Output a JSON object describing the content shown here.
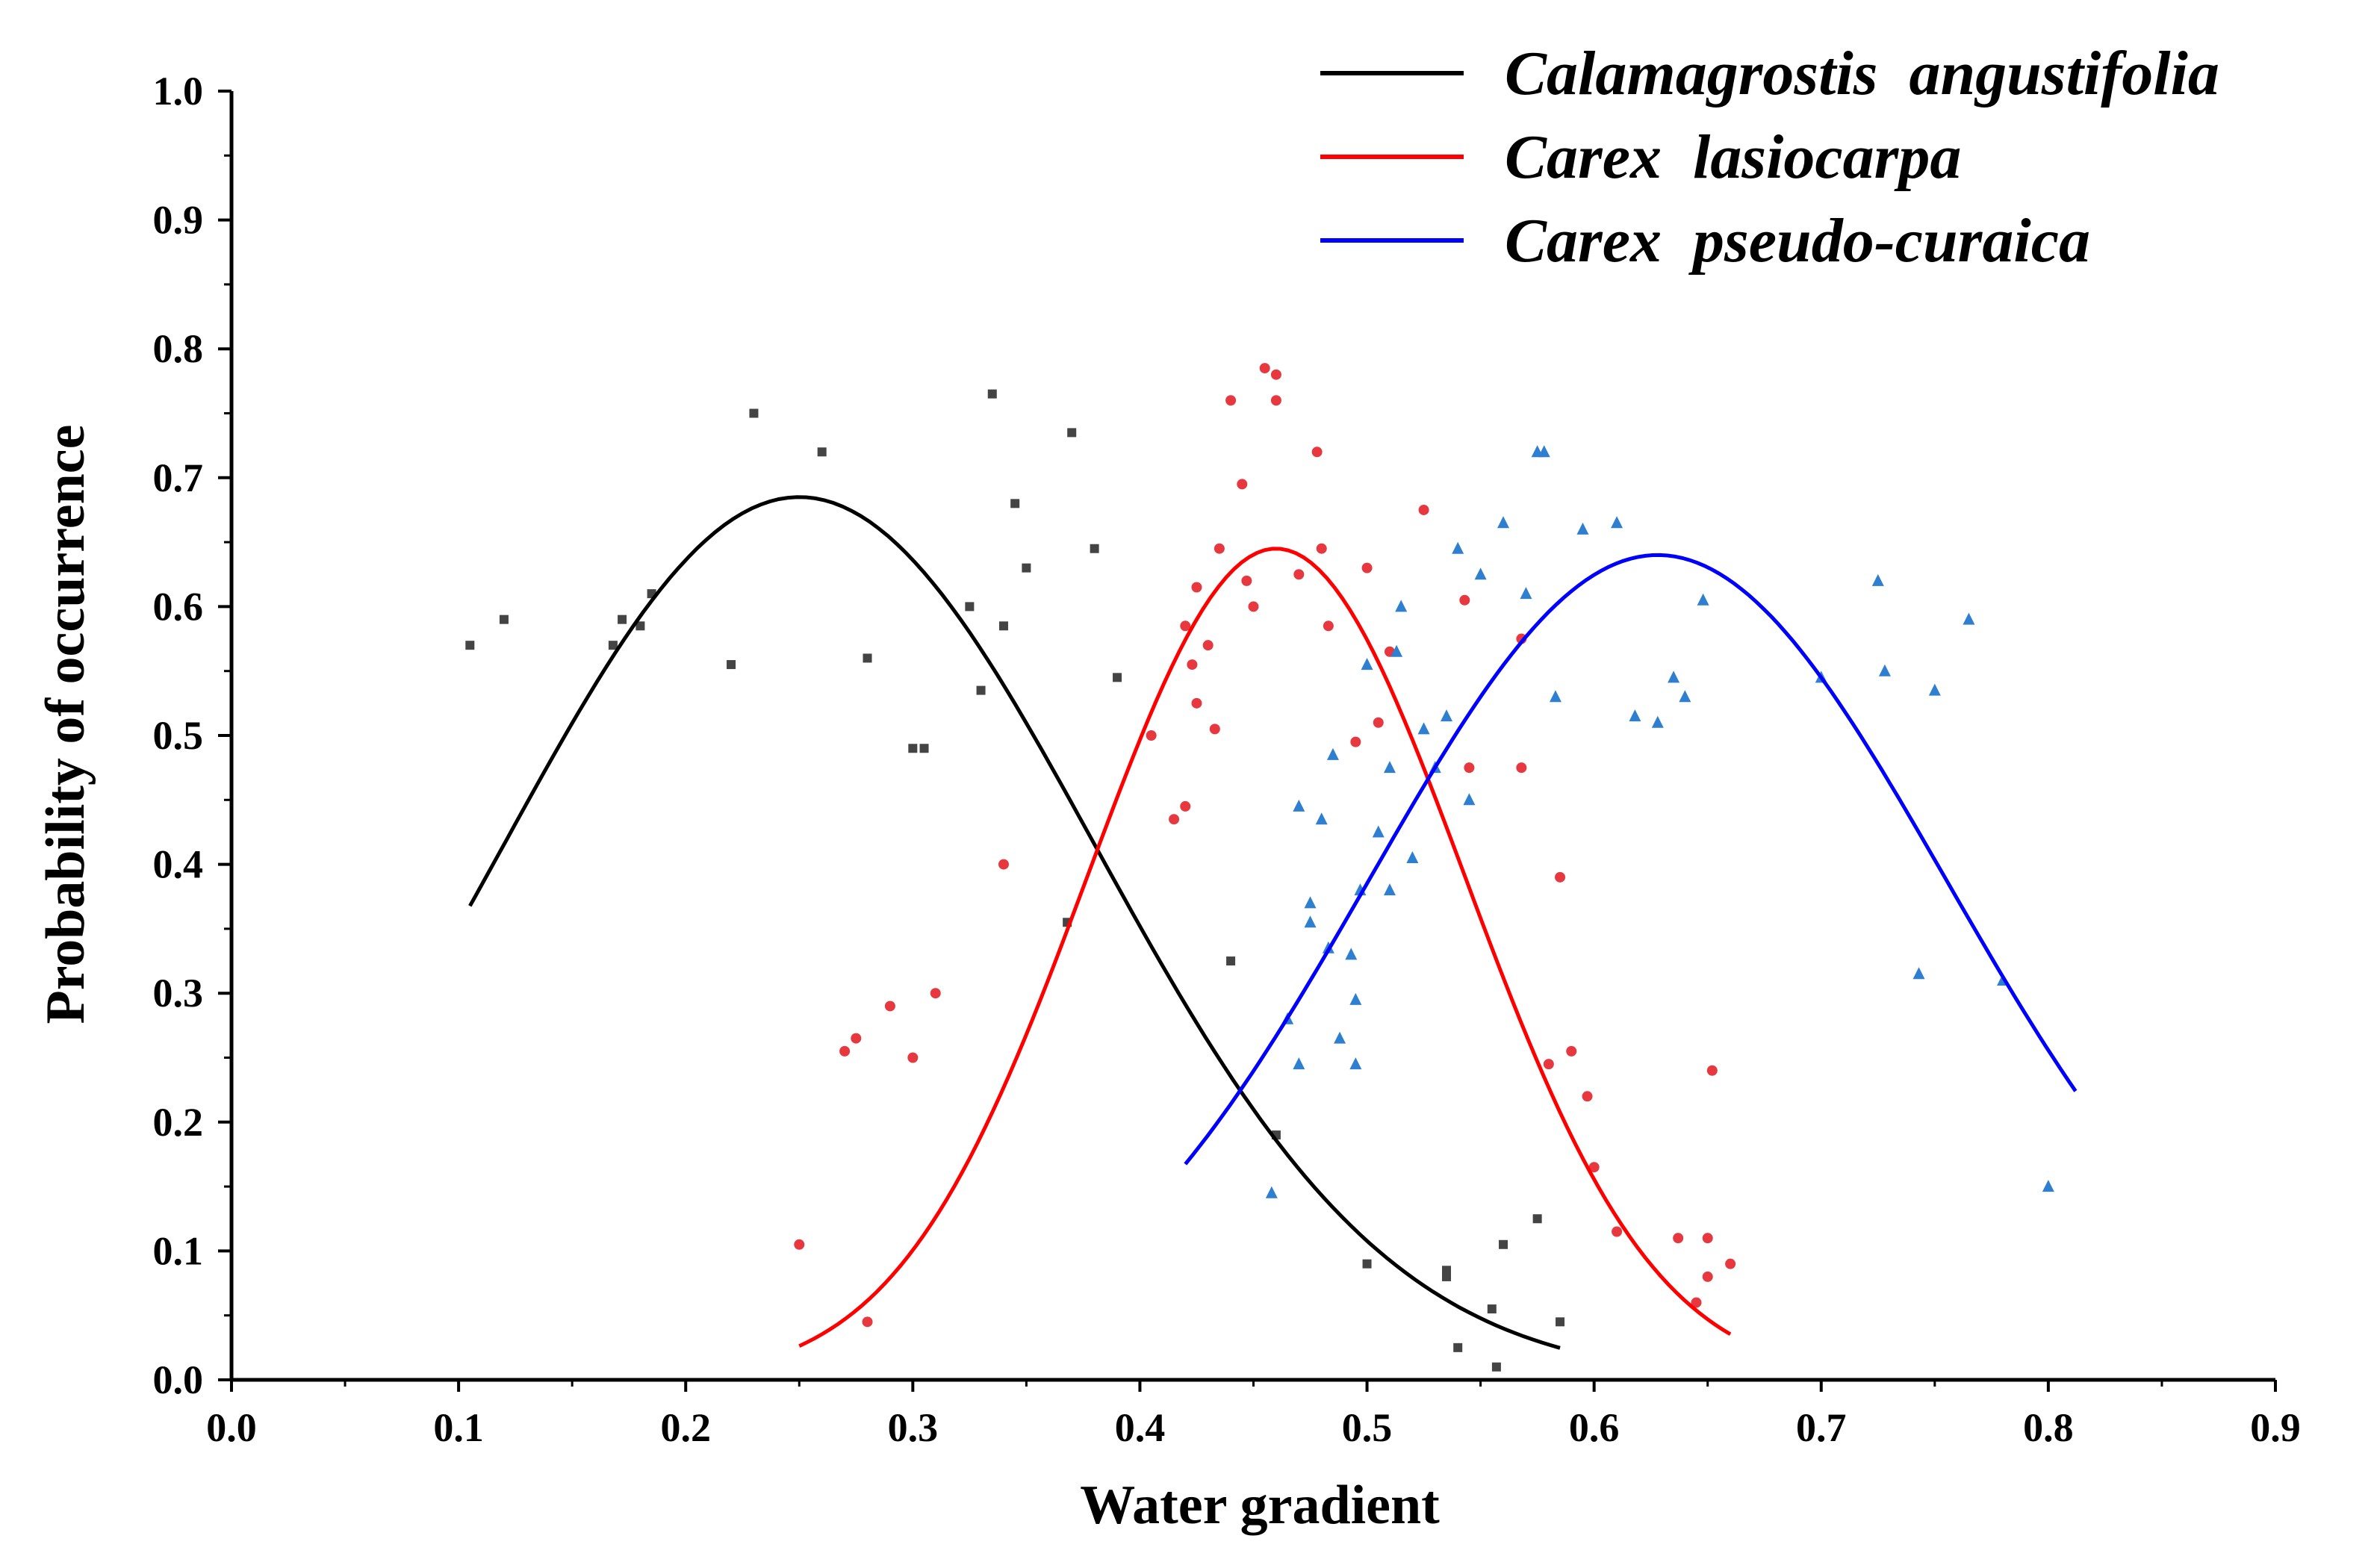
{
  "chart_data": {
    "type": "scatter",
    "title": "",
    "xlabel": "Water gradient",
    "ylabel": "Probability of occurrence",
    "xlim": [
      0.0,
      0.9
    ],
    "ylim": [
      0.0,
      1.0
    ],
    "xticks": [
      "0.0",
      "0.1",
      "0.2",
      "0.3",
      "0.4",
      "0.5",
      "0.6",
      "0.7",
      "0.8",
      "0.9"
    ],
    "yticks": [
      "0.0",
      "0.1",
      "0.2",
      "0.3",
      "0.4",
      "0.5",
      "0.6",
      "0.7",
      "0.8",
      "0.9",
      "1.0"
    ],
    "grid": false,
    "legend_position": "top-right",
    "series": [
      {
        "name": "Calamagrostis  angustifolia",
        "color": "#000000",
        "marker_color": "#444444",
        "marker": "square",
        "curve": {
          "x_start": 0.105,
          "x_end": 0.585,
          "peak_x": 0.25,
          "peak_y": 0.685,
          "sd": 0.13
        },
        "points": [
          [
            0.105,
            0.57
          ],
          [
            0.12,
            0.59
          ],
          [
            0.168,
            0.57
          ],
          [
            0.172,
            0.59
          ],
          [
            0.18,
            0.585
          ],
          [
            0.185,
            0.61
          ],
          [
            0.22,
            0.555
          ],
          [
            0.23,
            0.75
          ],
          [
            0.26,
            0.72
          ],
          [
            0.28,
            0.56
          ],
          [
            0.3,
            0.49
          ],
          [
            0.305,
            0.49
          ],
          [
            0.325,
            0.6
          ],
          [
            0.33,
            0.535
          ],
          [
            0.335,
            0.765
          ],
          [
            0.34,
            0.585
          ],
          [
            0.345,
            0.68
          ],
          [
            0.35,
            0.63
          ],
          [
            0.37,
            0.735
          ],
          [
            0.368,
            0.355
          ],
          [
            0.38,
            0.645
          ],
          [
            0.39,
            0.545
          ],
          [
            0.44,
            0.325
          ],
          [
            0.46,
            0.19
          ],
          [
            0.5,
            0.09
          ],
          [
            0.535,
            0.085
          ],
          [
            0.535,
            0.08
          ],
          [
            0.54,
            0.025
          ],
          [
            0.555,
            0.055
          ],
          [
            0.557,
            0.01
          ],
          [
            0.56,
            0.105
          ],
          [
            0.575,
            0.125
          ],
          [
            0.585,
            0.045
          ]
        ]
      },
      {
        "name": "Carex  lasiocarpa",
        "color": "#ff0000",
        "marker_color": "#e8383f",
        "marker": "circle",
        "curve": {
          "x_start": 0.25,
          "x_end": 0.66,
          "peak_x": 0.46,
          "peak_y": 0.645,
          "sd": 0.083
        },
        "points": [
          [
            0.25,
            0.105
          ],
          [
            0.27,
            0.255
          ],
          [
            0.275,
            0.265
          ],
          [
            0.28,
            0.045
          ],
          [
            0.29,
            0.29
          ],
          [
            0.3,
            0.25
          ],
          [
            0.31,
            0.3
          ],
          [
            0.34,
            0.4
          ],
          [
            0.405,
            0.5
          ],
          [
            0.415,
            0.435
          ],
          [
            0.42,
            0.585
          ],
          [
            0.42,
            0.445
          ],
          [
            0.423,
            0.555
          ],
          [
            0.425,
            0.615
          ],
          [
            0.425,
            0.525
          ],
          [
            0.43,
            0.57
          ],
          [
            0.433,
            0.505
          ],
          [
            0.435,
            0.645
          ],
          [
            0.44,
            0.76
          ],
          [
            0.445,
            0.695
          ],
          [
            0.447,
            0.62
          ],
          [
            0.45,
            0.6
          ],
          [
            0.455,
            0.785
          ],
          [
            0.46,
            0.76
          ],
          [
            0.46,
            0.78
          ],
          [
            0.47,
            0.625
          ],
          [
            0.478,
            0.72
          ],
          [
            0.48,
            0.645
          ],
          [
            0.483,
            0.585
          ],
          [
            0.495,
            0.495
          ],
          [
            0.5,
            0.63
          ],
          [
            0.505,
            0.51
          ],
          [
            0.51,
            0.565
          ],
          [
            0.525,
            0.675
          ],
          [
            0.543,
            0.605
          ],
          [
            0.545,
            0.475
          ],
          [
            0.568,
            0.575
          ],
          [
            0.568,
            0.475
          ],
          [
            0.58,
            0.245
          ],
          [
            0.585,
            0.39
          ],
          [
            0.59,
            0.255
          ],
          [
            0.597,
            0.22
          ],
          [
            0.6,
            0.165
          ],
          [
            0.61,
            0.115
          ],
          [
            0.637,
            0.11
          ],
          [
            0.645,
            0.06
          ],
          [
            0.65,
            0.08
          ],
          [
            0.65,
            0.11
          ],
          [
            0.652,
            0.24
          ],
          [
            0.66,
            0.09
          ]
        ]
      },
      {
        "name": "Carex  pseudo-curaica",
        "color": "#0000ff",
        "marker_color": "#2f7fd0",
        "marker": "triangle",
        "curve": {
          "x_start": 0.42,
          "x_end": 0.812,
          "peak_x": 0.628,
          "peak_y": 0.64,
          "sd": 0.127
        },
        "points": [
          [
            0.458,
            0.145
          ],
          [
            0.465,
            0.28
          ],
          [
            0.47,
            0.245
          ],
          [
            0.47,
            0.445
          ],
          [
            0.475,
            0.37
          ],
          [
            0.475,
            0.355
          ],
          [
            0.48,
            0.435
          ],
          [
            0.483,
            0.335
          ],
          [
            0.485,
            0.485
          ],
          [
            0.488,
            0.265
          ],
          [
            0.493,
            0.33
          ],
          [
            0.495,
            0.295
          ],
          [
            0.495,
            0.245
          ],
          [
            0.497,
            0.38
          ],
          [
            0.5,
            0.555
          ],
          [
            0.505,
            0.425
          ],
          [
            0.51,
            0.475
          ],
          [
            0.51,
            0.38
          ],
          [
            0.513,
            0.565
          ],
          [
            0.515,
            0.6
          ],
          [
            0.52,
            0.405
          ],
          [
            0.525,
            0.505
          ],
          [
            0.53,
            0.475
          ],
          [
            0.535,
            0.515
          ],
          [
            0.54,
            0.645
          ],
          [
            0.545,
            0.45
          ],
          [
            0.55,
            0.625
          ],
          [
            0.56,
            0.665
          ],
          [
            0.57,
            0.61
          ],
          [
            0.575,
            0.72
          ],
          [
            0.578,
            0.72
          ],
          [
            0.583,
            0.53
          ],
          [
            0.595,
            0.66
          ],
          [
            0.61,
            0.665
          ],
          [
            0.618,
            0.515
          ],
          [
            0.628,
            0.51
          ],
          [
            0.635,
            0.545
          ],
          [
            0.64,
            0.53
          ],
          [
            0.648,
            0.605
          ],
          [
            0.7,
            0.545
          ],
          [
            0.725,
            0.62
          ],
          [
            0.728,
            0.55
          ],
          [
            0.75,
            0.535
          ],
          [
            0.743,
            0.315
          ],
          [
            0.765,
            0.59
          ],
          [
            0.78,
            0.31
          ],
          [
            0.8,
            0.15
          ]
        ]
      }
    ]
  }
}
